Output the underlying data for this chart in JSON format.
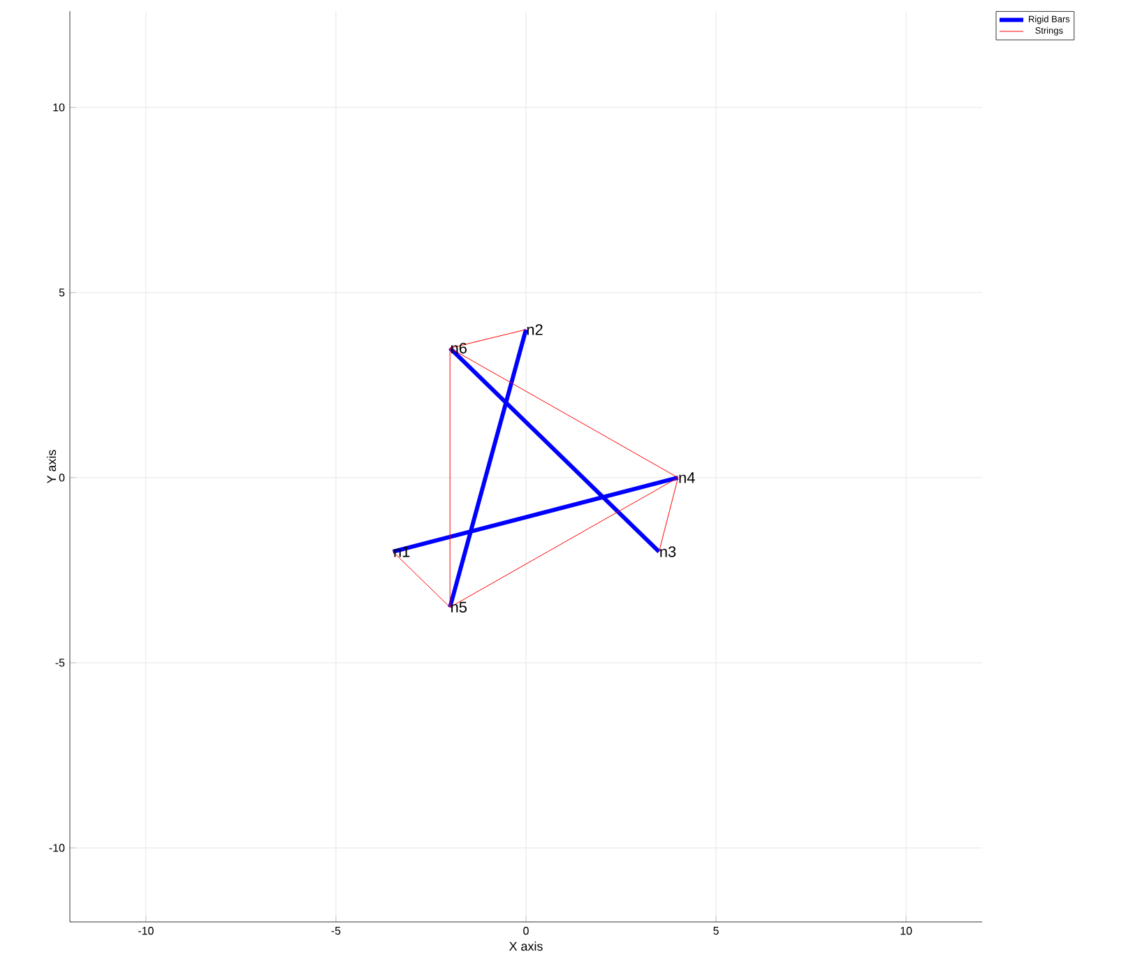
{
  "chart_data": {
    "type": "line",
    "xlabel": "X axis",
    "ylabel": "Y axis",
    "xlim": [
      -12,
      12
    ],
    "ylim": [
      -12,
      12.6
    ],
    "xticks": [
      -10,
      -5,
      0,
      5,
      10
    ],
    "yticks": [
      -10,
      -5,
      0,
      5,
      10
    ],
    "grid": true,
    "legend": "top right",
    "marker": "none",
    "series": [
      {
        "name": "Rigid Bars",
        "color": "#0000ff",
        "x": [
          -3.5,
          4,
          null,
          0,
          -2,
          null,
          3.5,
          -2
        ],
        "values": [
          -2,
          0,
          null,
          4,
          -3.5,
          null,
          -2,
          3.5
        ]
      },
      {
        "name": "Strings",
        "color": "#ff0000",
        "x": [
          -2,
          0,
          null,
          -2,
          4,
          null,
          -2,
          -2,
          null,
          -3.5,
          -2,
          null,
          -2,
          4,
          null,
          4,
          3.5
        ],
        "values": [
          3.5,
          4,
          null,
          3.5,
          0,
          null,
          3.5,
          -3.5,
          null,
          -2,
          -3.5,
          null,
          -3.5,
          0,
          null,
          0,
          -2
        ]
      }
    ],
    "annotations": [
      {
        "text": "n1",
        "x": -3.5,
        "y": -2
      },
      {
        "text": "n2",
        "x": 0,
        "y": 4
      },
      {
        "text": "n3",
        "x": 3.5,
        "y": -2
      },
      {
        "text": "n4",
        "x": 4,
        "y": 0
      },
      {
        "text": "n5",
        "x": -2,
        "y": -3.5
      },
      {
        "text": "n6",
        "x": -2,
        "y": 3.5
      }
    ]
  }
}
